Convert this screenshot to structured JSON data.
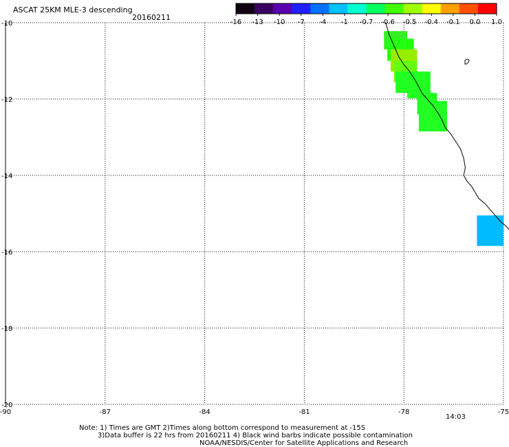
{
  "header": {
    "title": "ASCAT 25KM MLE-3 descending",
    "date": "20160211"
  },
  "colorbar": {
    "labels": [
      "-16",
      "-13",
      "-10",
      "-7",
      "-4",
      "-1",
      "-0.7",
      "-0.6",
      "-0.5",
      "-0.4",
      "-0.1",
      "0.0",
      "1.0"
    ],
    "colors": [
      "#110011",
      "#3a0060",
      "#5a00b0",
      "#2020ff",
      "#0070ff",
      "#00c0ff",
      "#00ffd0",
      "#00ff60",
      "#40ff00",
      "#a0ff00",
      "#ffff00",
      "#ffa000",
      "#ff5000",
      "#ff0000"
    ]
  },
  "axes": {
    "lat_labels": [
      "-10",
      "-12",
      "-14",
      "-16",
      "-18",
      "-20"
    ],
    "lon_labels": [
      "-90",
      "-87",
      "-84",
      "-81",
      "-78",
      "-75"
    ],
    "lat_range": [
      -20,
      -10
    ],
    "lon_range": [
      -90,
      -75
    ],
    "grid": "dotted"
  },
  "time_label": "14:03",
  "time_color": "#cc2200",
  "notes": {
    "line1": "Note: 1) Times are GMT 2)Times along bottom correspond to measurement at -15S",
    "line2": "3)Data buffer is 22 hrs from 20160211 4) Black wind barbs indicate possible contamination",
    "line3": "NOAA/NESDIS/Center for Satellite Applications and Research"
  },
  "data_cells": [
    {
      "lon0": -78.6,
      "lon1": -77.9,
      "lat0": -10.22,
      "lat1": -10.7,
      "color": "#33ee22"
    },
    {
      "lon0": -78.5,
      "lon1": -77.7,
      "lat0": -10.42,
      "lat1": -11.0,
      "color": "#22ff11"
    },
    {
      "lon0": -78.4,
      "lon1": -77.6,
      "lat0": -10.7,
      "lat1": -11.28,
      "color": "#99ee00"
    },
    {
      "lon0": -78.3,
      "lon1": -77.6,
      "lat0": -11.0,
      "lat1": -11.56,
      "color": "#66ff11"
    },
    {
      "lon0": -78.25,
      "lon1": -77.6,
      "lat0": -11.28,
      "lat1": -11.84,
      "color": "#22ff22"
    },
    {
      "lon0": -77.9,
      "lon1": -77.2,
      "lat0": -11.28,
      "lat1": -11.98,
      "color": "#22ff22"
    },
    {
      "lon0": -77.6,
      "lon1": -77.0,
      "lat0": -11.84,
      "lat1": -12.4,
      "color": "#22ff22"
    },
    {
      "lon0": -77.55,
      "lon1": -76.7,
      "lat0": -12.05,
      "lat1": -12.85,
      "color": "#22ff22"
    },
    {
      "lon0": -75.8,
      "lon1": -75.0,
      "lat0": -15.05,
      "lat1": -15.85,
      "color": "#00bbff"
    }
  ],
  "coastline": [
    [
      -78.55,
      -10.0
    ],
    [
      -78.45,
      -10.3
    ],
    [
      -78.35,
      -10.5
    ],
    [
      -78.25,
      -10.7
    ],
    [
      -78.15,
      -10.9
    ],
    [
      -78.0,
      -11.1
    ],
    [
      -77.85,
      -11.25
    ],
    [
      -77.7,
      -11.45
    ],
    [
      -77.6,
      -11.6
    ],
    [
      -77.45,
      -11.85
    ],
    [
      -77.3,
      -12.0
    ],
    [
      -77.1,
      -12.2
    ],
    [
      -76.95,
      -12.4
    ],
    [
      -76.85,
      -12.55
    ],
    [
      -76.75,
      -12.75
    ],
    [
      -76.6,
      -12.9
    ],
    [
      -76.45,
      -13.1
    ],
    [
      -76.3,
      -13.3
    ],
    [
      -76.2,
      -13.55
    ],
    [
      -76.15,
      -13.8
    ],
    [
      -76.2,
      -14.0
    ],
    [
      -76.1,
      -14.15
    ],
    [
      -75.95,
      -14.3
    ],
    [
      -75.85,
      -14.45
    ],
    [
      -75.75,
      -14.6
    ],
    [
      -75.55,
      -14.75
    ],
    [
      -75.35,
      -14.95
    ],
    [
      -75.1,
      -15.2
    ],
    [
      -74.9,
      -15.35
    ],
    [
      -74.7,
      -15.55
    ]
  ]
}
